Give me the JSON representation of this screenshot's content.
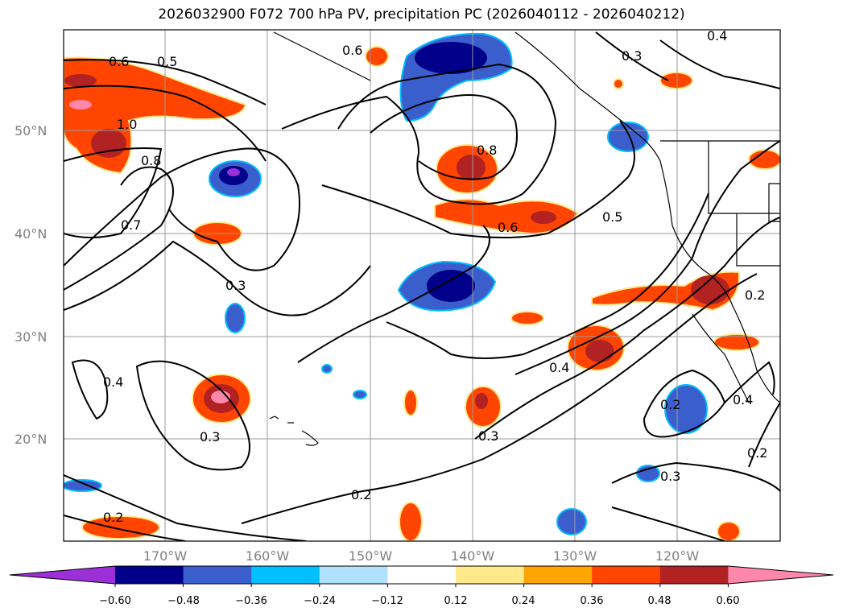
{
  "title": "2026032900 F072 700 hPa PV, precipitation PC (2026040112 - 2026040212)",
  "lat_labels": [
    "50°N",
    "40°N",
    "30°N",
    "20°N"
  ],
  "lon_labels": [
    "170°W",
    "160°W",
    "150°W",
    "140°W",
    "130°W",
    "120°W"
  ],
  "colorbar": {
    "ticks": [
      "−0.60",
      "−0.48",
      "−0.36",
      "−0.24",
      "−0.12",
      "0.12",
      "0.24",
      "0.36",
      "0.48",
      "0.60"
    ],
    "colors": [
      "#9b30d9",
      "#00008b",
      "#3a5fcd",
      "#00bfff",
      "#b0e2ff",
      "#ffffff",
      "#ffe98a",
      "#ffa500",
      "#ff4500",
      "#b22222",
      "#ff88aa"
    ]
  },
  "contour_labels": [
    "0.6",
    "0.5",
    "0.6",
    "0.4",
    "0.3",
    "1.0",
    "0.8",
    "0.7",
    "0.8",
    "0.6",
    "0.5",
    "0.3",
    "0.4",
    "0.4",
    "0.3",
    "0.3",
    "0.2",
    "0.2",
    "0.2",
    "0.2",
    "0.4",
    "0.2",
    "0.3"
  ]
}
